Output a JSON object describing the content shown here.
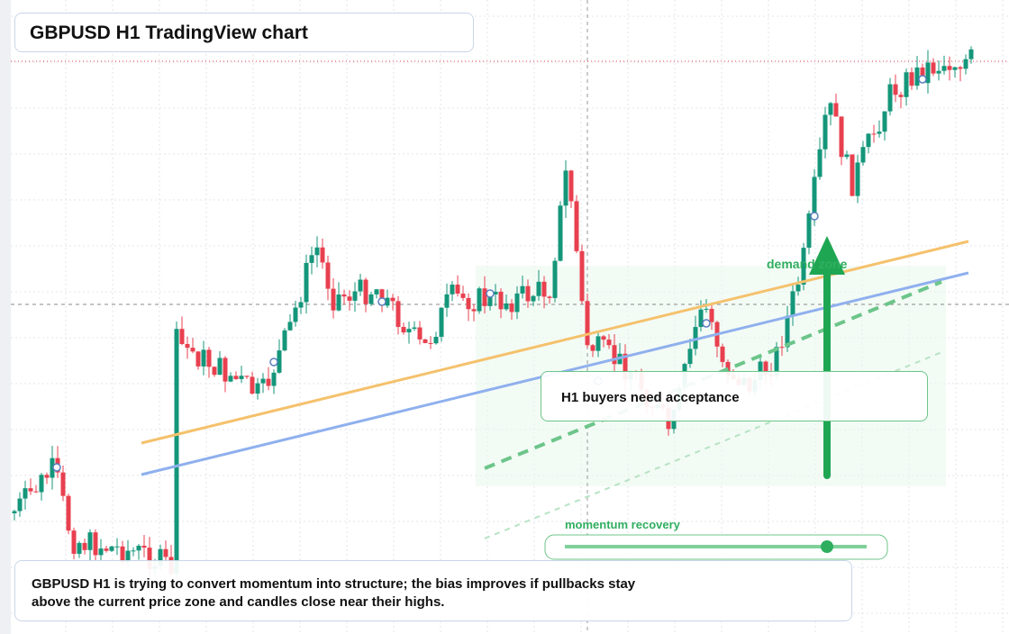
{
  "header": {
    "title": "GBPUSD H1 TradingView chart"
  },
  "annotations": {
    "zone": "demand zone",
    "callout": "H1 buyers need acceptance",
    "momentum": "momentum recovery"
  },
  "caption": "GBPUSD H1 is trying to convert momentum into structure; the bias improves if pullbacks stay above the current price zone and candles close near their highs."
}
